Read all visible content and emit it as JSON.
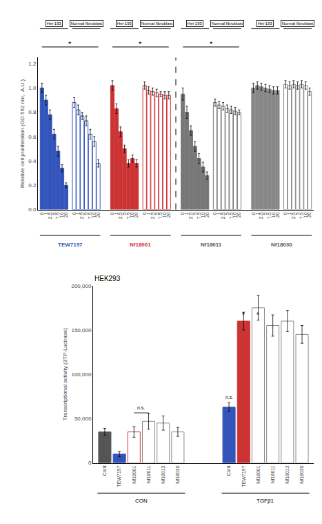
{
  "chart_data": [
    {
      "type": "bar",
      "ylabel": "Relative cell proliferation (OD 562 nm,  A.U.)",
      "categories": [
        "0",
        "1",
        "2.5",
        "5",
        "7.5",
        "10",
        "20"
      ],
      "groups": [
        {
          "name": "TEW7197",
          "color": "#3355BB",
          "series": [
            {
              "name": "Hei-193",
              "color": "#3355BB",
              "marker": "filled",
              "values": [
                1.0,
                0.9,
                0.78,
                0.62,
                0.48,
                0.34,
                0.2
              ],
              "errors": [
                0.04,
                0.04,
                0.04,
                0.04,
                0.04,
                0.03,
                0.02
              ]
            },
            {
              "name": "Normal fibroblast",
              "color": "#3355BB",
              "marker": "hollow",
              "values": [
                0.88,
                0.82,
                0.77,
                0.73,
                0.62,
                0.56,
                0.38
              ],
              "errors": [
                0.04,
                0.04,
                0.03,
                0.04,
                0.04,
                0.04,
                0.03
              ]
            }
          ]
        },
        {
          "name": "Nf18001",
          "color": "#CC3333",
          "series": [
            {
              "name": "Hei-193",
              "color": "#CC3333",
              "marker": "filled",
              "values": [
                1.02,
                0.83,
                0.64,
                0.5,
                0.38,
                0.42,
                0.38
              ],
              "errors": [
                0.04,
                0.04,
                0.04,
                0.03,
                0.03,
                0.03,
                0.03
              ]
            },
            {
              "name": "Normal fibroblast",
              "color": "#CC3333",
              "marker": "hollow",
              "values": [
                1.02,
                0.98,
                0.97,
                0.96,
                0.95,
                0.94,
                0.94
              ],
              "errors": [
                0.03,
                0.03,
                0.03,
                0.03,
                0.02,
                0.03,
                0.03
              ]
            }
          ]
        },
        {
          "name": "Nf18011",
          "color": "#555555",
          "series": [
            {
              "name": "Hei-193",
              "color": "#777777",
              "marker": "filled",
              "values": [
                0.95,
                0.8,
                0.65,
                0.52,
                0.42,
                0.35,
                0.28
              ],
              "errors": [
                0.05,
                0.05,
                0.04,
                0.04,
                0.04,
                0.04,
                0.03
              ]
            },
            {
              "name": "Normal fibroblast",
              "color": "#777777",
              "marker": "hollow",
              "values": [
                0.88,
                0.86,
                0.85,
                0.83,
                0.82,
                0.81,
                0.8
              ],
              "errors": [
                0.03,
                0.03,
                0.03,
                0.03,
                0.03,
                0.03,
                0.02
              ]
            }
          ]
        },
        {
          "name": "Nf18030",
          "color": "#555555",
          "series": [
            {
              "name": "Hei-193",
              "color": "#888888",
              "marker": "filled",
              "values": [
                1.0,
                1.02,
                1.01,
                1.0,
                0.99,
                0.98,
                0.98
              ],
              "errors": [
                0.04,
                0.03,
                0.03,
                0.03,
                0.03,
                0.03,
                0.03
              ]
            },
            {
              "name": "Normal fibroblast",
              "color": "#888888",
              "marker": "hollow",
              "values": [
                1.03,
                1.02,
                1.03,
                1.02,
                1.03,
                1.02,
                0.97
              ],
              "errors": [
                0.03,
                0.03,
                0.03,
                0.03,
                0.03,
                0.03,
                0.03
              ]
            }
          ]
        }
      ],
      "annotations": [
        {
          "text": "*",
          "group": "TEW7197"
        },
        {
          "text": "*",
          "group": "Nf18001"
        },
        {
          "text": "*",
          "group": "Nf18011"
        }
      ],
      "divider": {
        "after": "Nf18001",
        "line_style": "dashed"
      },
      "ylim": [
        0,
        1.25
      ],
      "yticks": [
        {
          "value": 0.0,
          "label": "0.0"
        },
        0.2,
        0.4,
        0.6,
        0.8,
        {
          "value": 1.0,
          "label": "1.0"
        },
        1.2
      ],
      "grid": false
    },
    {
      "type": "bar",
      "title": "HEK293",
      "ylabel": "Transcriptional activity (3TP-Lucirase)",
      "categories": [
        "Cont",
        "TEW7197",
        "Nf18001",
        "Nf18011",
        "Nf18012",
        "Nf18030"
      ],
      "groups": [
        {
          "name": "CON",
          "values": [
            35000,
            10000,
            35000,
            47000,
            45000,
            35000
          ],
          "errors": [
            4000,
            3000,
            6000,
            9000,
            8000,
            5000
          ],
          "colors": [
            "#555555",
            "#3355BB",
            "#CC3333",
            "#888888",
            "#888888",
            "#888888"
          ],
          "markers": [
            "filled",
            "filled",
            "hollow",
            "hollow",
            "hollow",
            "hollow"
          ]
        },
        {
          "name": "TGFβ1",
          "values": [
            63000,
            160000,
            175000,
            155000,
            160000,
            145000
          ],
          "errors": [
            5000,
            10000,
            14000,
            12000,
            12000,
            10000
          ],
          "colors": [
            "#3355BB",
            "#CC3333",
            "#888888",
            "#888888",
            "#888888",
            "#888888"
          ],
          "markers": [
            "filled",
            "filled",
            "hollow",
            "hollow",
            "hollow",
            "hollow"
          ]
        }
      ],
      "annotations": [
        {
          "text": "n.s.",
          "group": "CON",
          "categories": [
            "Nf18001",
            "Nf18011"
          ],
          "y": 58000,
          "line_y": 56500
        },
        {
          "text": "n.s.",
          "group": "TGFβ1",
          "categories": [
            "Cont"
          ],
          "y": 70000
        },
        {
          "text": "*",
          "group": "TGFβ1",
          "categories": [
            "TEW7197"
          ],
          "y": 163000
        },
        {
          "text": "*",
          "group": "TGFβ1",
          "categories": [
            "Nf18001"
          ],
          "y": 163000
        }
      ],
      "ylim": [
        0,
        200000
      ],
      "yticks": [
        0,
        {
          "value": 50000,
          "label": "50,000"
        },
        {
          "value": 100000,
          "label": "100,000"
        },
        {
          "value": 150000,
          "label": "150,000"
        },
        {
          "value": 200000,
          "label": "200,000"
        }
      ],
      "grid": false
    }
  ]
}
